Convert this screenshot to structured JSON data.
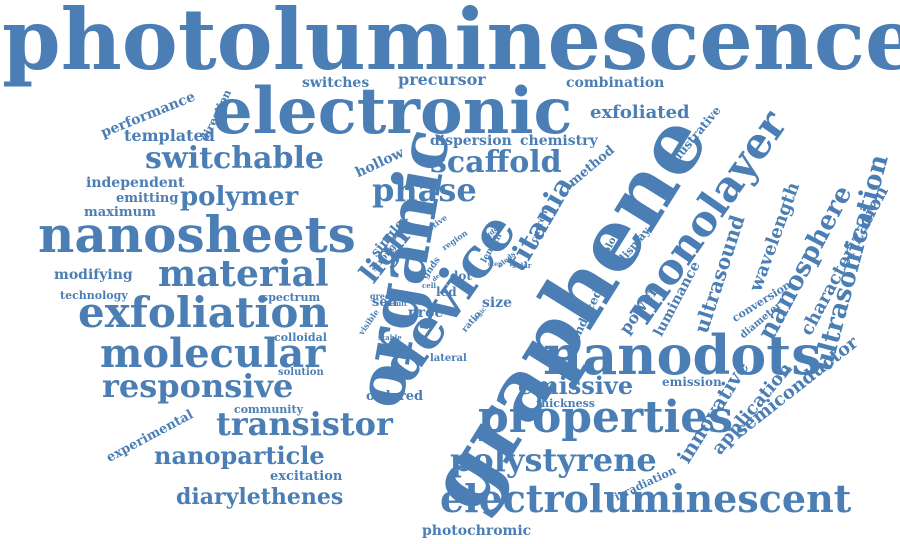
{
  "word_color": "#4a7eb4",
  "background": "#ffffff",
  "words": [
    "photoluminescence",
    "electronic",
    "graphene",
    "organic",
    "nanosheets",
    "nanodots",
    "device",
    "exfoliation",
    "properties",
    "molecular",
    "material",
    "monolayer",
    "electroluminescent",
    "responsive",
    "scaffold",
    "switchable",
    "phase",
    "polymer",
    "transistor",
    "polystyrene",
    "nanoparticle",
    "titania",
    "ultrasonication",
    "nanosphere",
    "diarylethenes",
    "light",
    "emissive",
    "ultrasound",
    "wavelength",
    "characterization",
    "innovative",
    "semiconductor",
    "application",
    "precursor",
    "switches",
    "combination",
    "exfoliated",
    "performance",
    "direction",
    "templated",
    "dispersion",
    "chemistry",
    "illustrative",
    "hollow",
    "method",
    "independent",
    "emitting",
    "maximum",
    "modifying",
    "technology",
    "spectrum",
    "colloidal",
    "solution",
    "community",
    "ordered",
    "experimental",
    "excitation",
    "photochromic",
    "thickness",
    "emission",
    "irradiation",
    "conversion",
    "diameter",
    "luminance",
    "power",
    "induced",
    "display",
    "colour",
    "current",
    "single",
    "strong",
    "visible",
    "green",
    "active",
    "region",
    "gnds",
    "cell",
    "dot",
    "led",
    "proc",
    "size",
    "self",
    "result",
    "stable",
    "ratio",
    "lateral",
    "length",
    "gqds",
    "oleds",
    "solar",
    "step",
    "logic",
    "dep"
  ]
}
